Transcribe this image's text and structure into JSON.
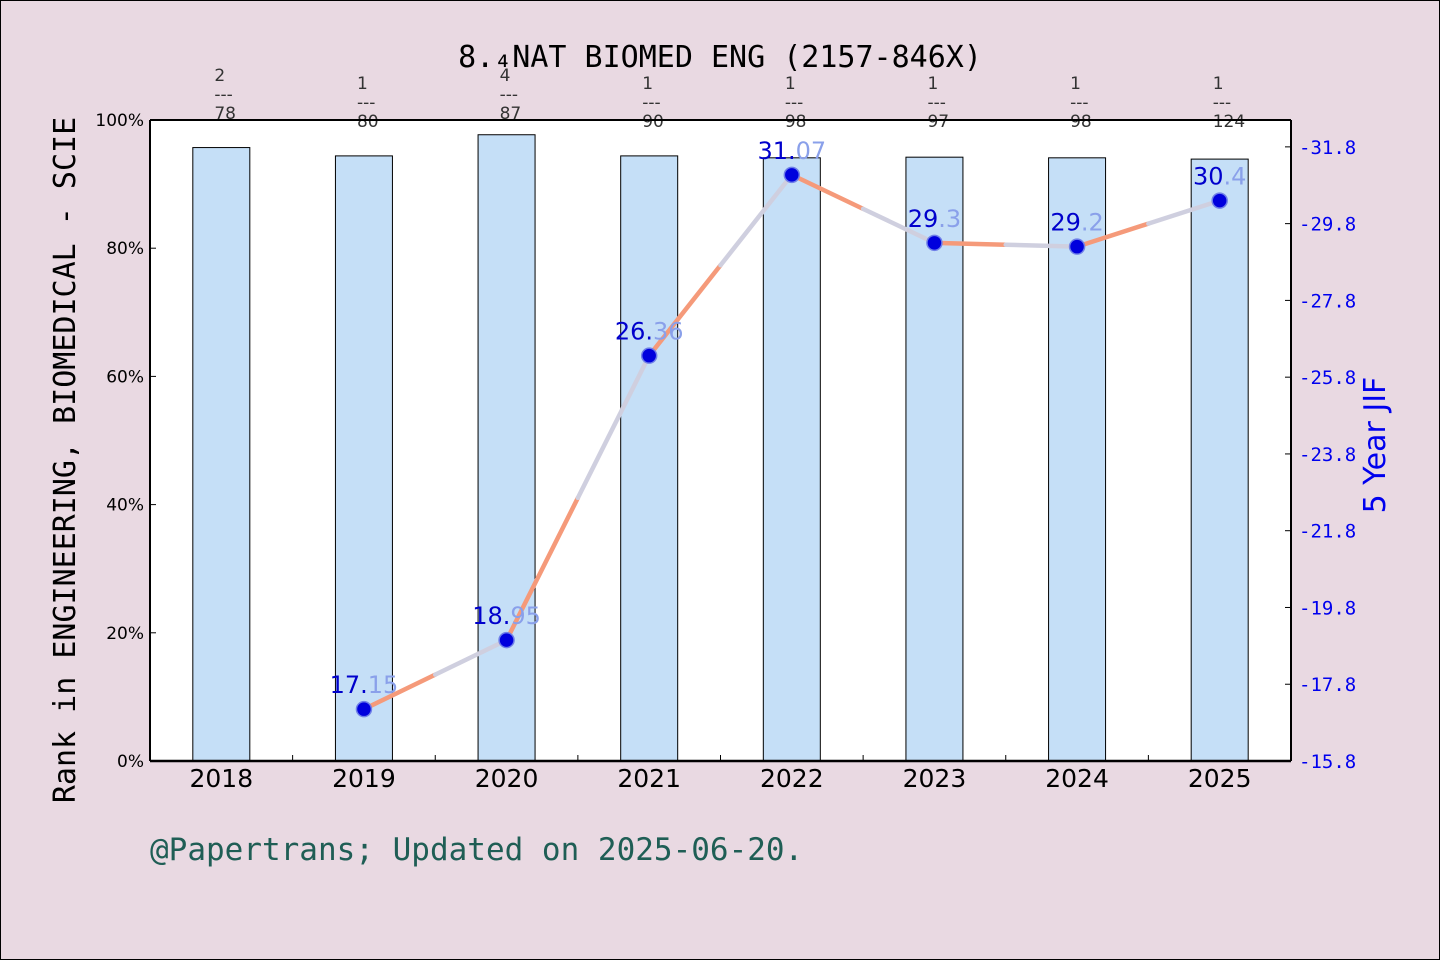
{
  "chart_data": {
    "type": "bar",
    "title": "8.₄NAT BIOMED ENG (2157-846X)",
    "categories": [
      "2018",
      "2019",
      "2020",
      "2021",
      "2022",
      "2023",
      "2024",
      "2025"
    ],
    "rank_fractions": [
      {
        "top": "2",
        "sep": "---",
        "bottom": "78"
      },
      {
        "top": "1",
        "sep": "---",
        "bottom": "80"
      },
      {
        "top": "4",
        "sep": "---",
        "bottom": "87"
      },
      {
        "top": "1",
        "sep": "---",
        "bottom": "90"
      },
      {
        "top": "1",
        "sep": "---",
        "bottom": "98"
      },
      {
        "top": "1",
        "sep": "---",
        "bottom": "97"
      },
      {
        "top": "1",
        "sep": "---",
        "bottom": "98"
      },
      {
        "top": "1",
        "sep": "---",
        "bottom": "124"
      }
    ],
    "bar_series": {
      "axis": "left",
      "ylabel": "Rank in ENGINEERING, BIOMEDICAL - SCIE",
      "ylim": [
        0,
        100
      ],
      "values": [
        95.7,
        94.4,
        97.7,
        94.4,
        94.1,
        94.2,
        94.1,
        93.9
      ],
      "color": "#c5dff7"
    },
    "line_series": {
      "axis": "right",
      "ylabel": "5 Year JIF",
      "ylim": [
        15.8,
        32.5
      ],
      "x": [
        "2019",
        "2020",
        "2021",
        "2022",
        "2023",
        "2024",
        "2025"
      ],
      "values": [
        17.15,
        18.95,
        26.36,
        31.07,
        29.3,
        29.2,
        30.4
      ],
      "labels": [
        "17.15",
        "18.95",
        "26.36",
        "31.07",
        "29.3",
        "29.2",
        "30.4"
      ],
      "line_color": "#f59a7a",
      "marker_color": "#0000dd"
    },
    "left_ticks": [
      "0%",
      "20%",
      "40%",
      "60%",
      "80%",
      "100%"
    ],
    "right_ticks": [
      "15.8",
      "17.8",
      "19.8",
      "21.8",
      "23.8",
      "25.8",
      "27.8",
      "29.8",
      "31.8"
    ],
    "grid": false,
    "legend": "none"
  },
  "footer": "@Papertrans; Updated on 2025-06-20."
}
